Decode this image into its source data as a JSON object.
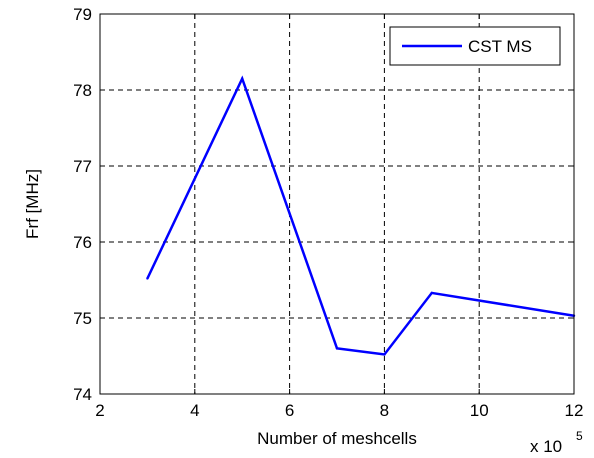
{
  "chart_data": {
    "type": "line",
    "xlabel": "Number of meshcells",
    "ylabel": "Frf [MHz]",
    "x_multiplier": {
      "base": "x 10",
      "exponent": "5"
    },
    "xlim": [
      2,
      12
    ],
    "ylim": [
      74,
      79
    ],
    "xticks": [
      2,
      4,
      6,
      8,
      10,
      12
    ],
    "yticks": [
      74,
      75,
      76,
      77,
      78,
      79
    ],
    "grid": true,
    "legend_position": "top-right",
    "series": [
      {
        "name": "CST MS",
        "color": "#0000ff",
        "x": [
          3,
          5,
          7,
          8,
          9,
          12
        ],
        "y": [
          75.52,
          78.15,
          74.6,
          74.52,
          75.33,
          75.03
        ]
      }
    ]
  }
}
